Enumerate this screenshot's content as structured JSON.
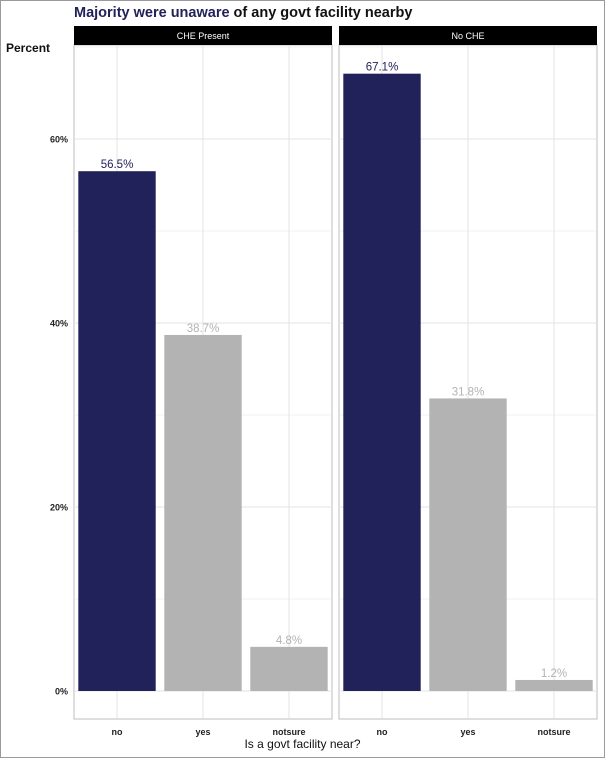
{
  "title": {
    "highlight": "Majority were unaware",
    "rest": " of any govt facility nearby",
    "highlight_color": "#22225a"
  },
  "chart_data": {
    "type": "bar",
    "ylabel": "Percent",
    "xlabel": "Is a govt facility near?",
    "ylim": [
      0,
      70
    ],
    "yticks": [
      0,
      20,
      40,
      60
    ],
    "ytick_labels": [
      "0%",
      "20%",
      "40%",
      "60%"
    ],
    "categories": [
      "no",
      "yes",
      "notsure"
    ],
    "panels": [
      {
        "name": "CHE Present",
        "values": [
          56.5,
          38.7,
          4.8
        ],
        "labels": [
          "56.5%",
          "38.7%",
          "4.8%"
        ]
      },
      {
        "name": "No CHE",
        "values": [
          67.1,
          31.8,
          1.2
        ],
        "labels": [
          "67.1%",
          "31.8%",
          "1.2%"
        ]
      }
    ],
    "highlight_category": "no",
    "colors": {
      "highlight": "#22225a",
      "other": "#b3b3b3",
      "strip": "#000000",
      "grid": "#e3e3e3"
    },
    "grid": true,
    "legend": "none"
  }
}
